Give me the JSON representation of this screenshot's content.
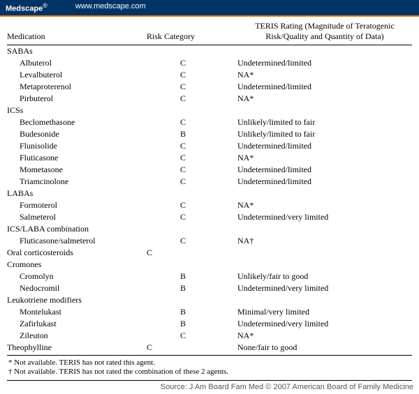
{
  "topbar": {
    "brand": "Medscape",
    "reg": "®",
    "url": "www.medscape.com"
  },
  "headers": {
    "medication": "Medication",
    "risk": "Risk Category",
    "teris": "TERIS Rating (Magnitude of Teratogenic Risk/Quality and Quantity of Data)"
  },
  "groups": [
    {
      "label": "SABAs",
      "drugs": [
        {
          "name": "Albuterol",
          "risk": "C",
          "teris": "Undetermined/limited"
        },
        {
          "name": "Levalbuterol",
          "risk": "C",
          "teris": "NA*"
        },
        {
          "name": "Metaproterenol",
          "risk": "C",
          "teris": "Undetermined/limited"
        },
        {
          "name": "Pirbuterol",
          "risk": "C",
          "teris": "NA*"
        }
      ]
    },
    {
      "label": "ICSs",
      "drugs": [
        {
          "name": "Beclomethasone",
          "risk": "C",
          "teris": "Unlikely/limited to fair"
        },
        {
          "name": "Budesonide",
          "risk": "B",
          "teris": "Unlikely/limited to fair"
        },
        {
          "name": "Flunisolide",
          "risk": "C",
          "teris": "Undetermined/limited"
        },
        {
          "name": "Fluticasone",
          "risk": "C",
          "teris": "NA*"
        },
        {
          "name": "Mometasone",
          "risk": "C",
          "teris": "Undetermined/limited"
        },
        {
          "name": "Triamcinolone",
          "risk": "C",
          "teris": "Undetermined/limited"
        }
      ]
    },
    {
      "label": "LABAs",
      "drugs": [
        {
          "name": "Formoterol",
          "risk": "C",
          "teris": "NA*"
        },
        {
          "name": "Salmeterol",
          "risk": "C",
          "teris": "Undetermined/very limited"
        }
      ]
    },
    {
      "label": "ICS/LABA combination",
      "drugs": [
        {
          "name": "Fluticasone/salmeterol",
          "risk": "C",
          "teris": "NA†"
        }
      ]
    },
    {
      "label": "Oral corticosteroids",
      "risk": "C",
      "drugs": []
    },
    {
      "label": "Cromones",
      "drugs": [
        {
          "name": "Cromolyn",
          "risk": "B",
          "teris": "Unlikely/fair to good"
        },
        {
          "name": "Nedocromil",
          "risk": "B",
          "teris": "Undetermined/very limited"
        }
      ]
    },
    {
      "label": "Leukotriene modifiers",
      "drugs": [
        {
          "name": "Montelukast",
          "risk": "B",
          "teris": "Minimal/very limited"
        },
        {
          "name": "Zafirlukast",
          "risk": "B",
          "teris": "Undetermined/very limited"
        },
        {
          "name": "Zileuton",
          "risk": "C",
          "teris": "NA*"
        }
      ]
    },
    {
      "label": "Theophylline",
      "risk": "C",
      "teris": "None/fair to good",
      "drugs": []
    }
  ],
  "footnotes": {
    "a": "* Not available. TERIS has not rated this agent.",
    "b": "† Not available. TERIS has not rated the combination of these 2 agents."
  },
  "source": "Source: J Am Board Fam Med © 2007 American Board of Family Medicine"
}
